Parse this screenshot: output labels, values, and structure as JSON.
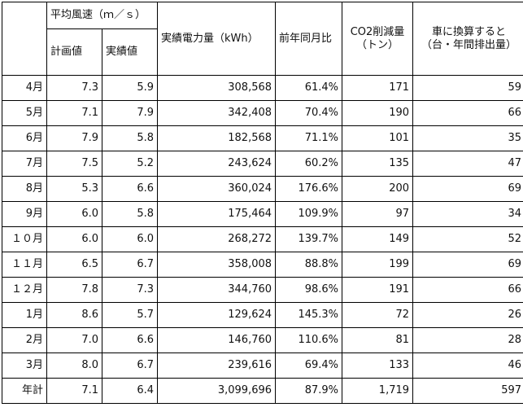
{
  "header": {
    "wind_speed": "平均風速（ｍ／ｓ）",
    "plan": "計画値",
    "actual": "実績値",
    "power": "実績電力量（kWh）",
    "yoy": "前年同月比",
    "co2_line1": "CO2削減量",
    "co2_line2": "（トン）",
    "car_line1": "車に換算すると",
    "car_line2": "（台・年間排出量）"
  },
  "rows": [
    {
      "month": "4月",
      "plan": "7.3",
      "actual": "5.9",
      "power": "308,568",
      "yoy": "61.4%",
      "co2": "171",
      "cars": "59"
    },
    {
      "month": "5月",
      "plan": "7.1",
      "actual": "7.9",
      "power": "342,408",
      "yoy": "70.4%",
      "co2": "190",
      "cars": "66"
    },
    {
      "month": "6月",
      "plan": "7.9",
      "actual": "5.8",
      "power": "182,568",
      "yoy": "71.1%",
      "co2": "101",
      "cars": "35"
    },
    {
      "month": "7月",
      "plan": "7.5",
      "actual": "5.2",
      "power": "243,624",
      "yoy": "60.2%",
      "co2": "135",
      "cars": "47"
    },
    {
      "month": "8月",
      "plan": "5.3",
      "actual": "6.6",
      "power": "360,024",
      "yoy": "176.6%",
      "co2": "200",
      "cars": "69"
    },
    {
      "month": "9月",
      "plan": "6.0",
      "actual": "5.8",
      "power": "175,464",
      "yoy": "109.9%",
      "co2": "97",
      "cars": "34"
    },
    {
      "month": "１０月",
      "plan": "6.0",
      "actual": "6.0",
      "power": "268,272",
      "yoy": "139.7%",
      "co2": "149",
      "cars": "52"
    },
    {
      "month": "１１月",
      "plan": "6.5",
      "actual": "6.7",
      "power": "358,008",
      "yoy": "88.8%",
      "co2": "199",
      "cars": "69"
    },
    {
      "month": "１２月",
      "plan": "7.8",
      "actual": "7.3",
      "power": "344,760",
      "yoy": "98.6%",
      "co2": "191",
      "cars": "66"
    },
    {
      "month": "1月",
      "plan": "8.6",
      "actual": "5.7",
      "power": "129,624",
      "yoy": "145.3%",
      "co2": "72",
      "cars": "26"
    },
    {
      "month": "2月",
      "plan": "7.0",
      "actual": "6.6",
      "power": "146,760",
      "yoy": "110.6%",
      "co2": "81",
      "cars": "28"
    },
    {
      "month": "3月",
      "plan": "8.0",
      "actual": "6.7",
      "power": "239,616",
      "yoy": "69.4%",
      "co2": "133",
      "cars": "46"
    },
    {
      "month": "年計",
      "plan": "7.1",
      "actual": "6.4",
      "power": "3,099,696",
      "yoy": "87.9%",
      "co2": "1,719",
      "cars": "597"
    }
  ]
}
